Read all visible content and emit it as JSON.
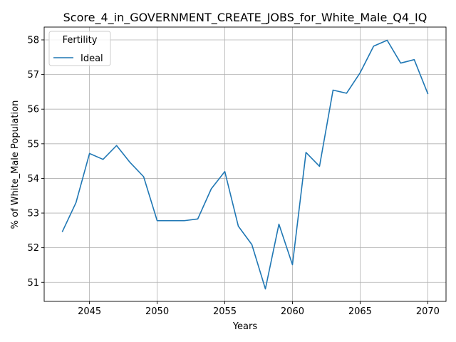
{
  "chart_data": {
    "type": "line",
    "title": "Score_4_in_GOVERNMENT_CREATE_JOBS_for_White_Male_Q4_IQ",
    "xlabel": "Years",
    "ylabel": "% of White_Male Population",
    "xlim": [
      2041.65,
      2071.35
    ],
    "ylim": [
      50.45,
      58.37
    ],
    "xticks": [
      2045,
      2050,
      2055,
      2060,
      2065,
      2070
    ],
    "yticks": [
      51,
      52,
      53,
      54,
      55,
      56,
      57,
      58
    ],
    "grid": true,
    "legend": {
      "title": "Fertility",
      "position": "top-left"
    },
    "series": [
      {
        "name": "Ideal",
        "color": "#1f77b4",
        "x": [
          2043,
          2044,
          2045,
          2046,
          2047,
          2048,
          2049,
          2050,
          2051,
          2052,
          2053,
          2054,
          2055,
          2056,
          2057,
          2058,
          2059,
          2060,
          2061,
          2062,
          2063,
          2064,
          2065,
          2066,
          2067,
          2068,
          2069,
          2070
        ],
        "values": [
          52.47,
          53.3,
          54.72,
          54.55,
          54.95,
          54.46,
          54.05,
          52.78,
          52.78,
          52.78,
          52.83,
          53.7,
          54.2,
          52.62,
          52.09,
          50.81,
          52.68,
          51.51,
          54.75,
          54.35,
          56.55,
          56.46,
          57.05,
          57.82,
          57.99,
          57.33,
          57.43,
          56.45
        ]
      }
    ]
  }
}
